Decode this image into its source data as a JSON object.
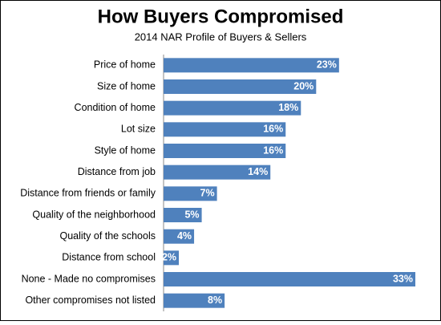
{
  "chart_data": {
    "type": "bar",
    "orientation": "horizontal",
    "title": "How Buyers Compromised",
    "subtitle": "2014 NAR Profile of Buyers & Sellers",
    "categories": [
      "Price of home",
      "Size of home",
      "Condition of home",
      "Lot size",
      "Style of home",
      "Distance from job",
      "Distance from friends or family",
      "Quality of the neighborhood",
      "Quality of the schools",
      "Distance from school",
      "None - Made no compromises",
      "Other compromises not listed"
    ],
    "values": [
      23,
      20,
      18,
      16,
      16,
      14,
      7,
      5,
      4,
      2,
      33,
      8
    ],
    "value_labels": [
      "23%",
      "20%",
      "18%",
      "16%",
      "16%",
      "14%",
      "7%",
      "5%",
      "4%",
      "2%",
      "33%",
      "8%"
    ],
    "color": "#4f81bd"
  }
}
